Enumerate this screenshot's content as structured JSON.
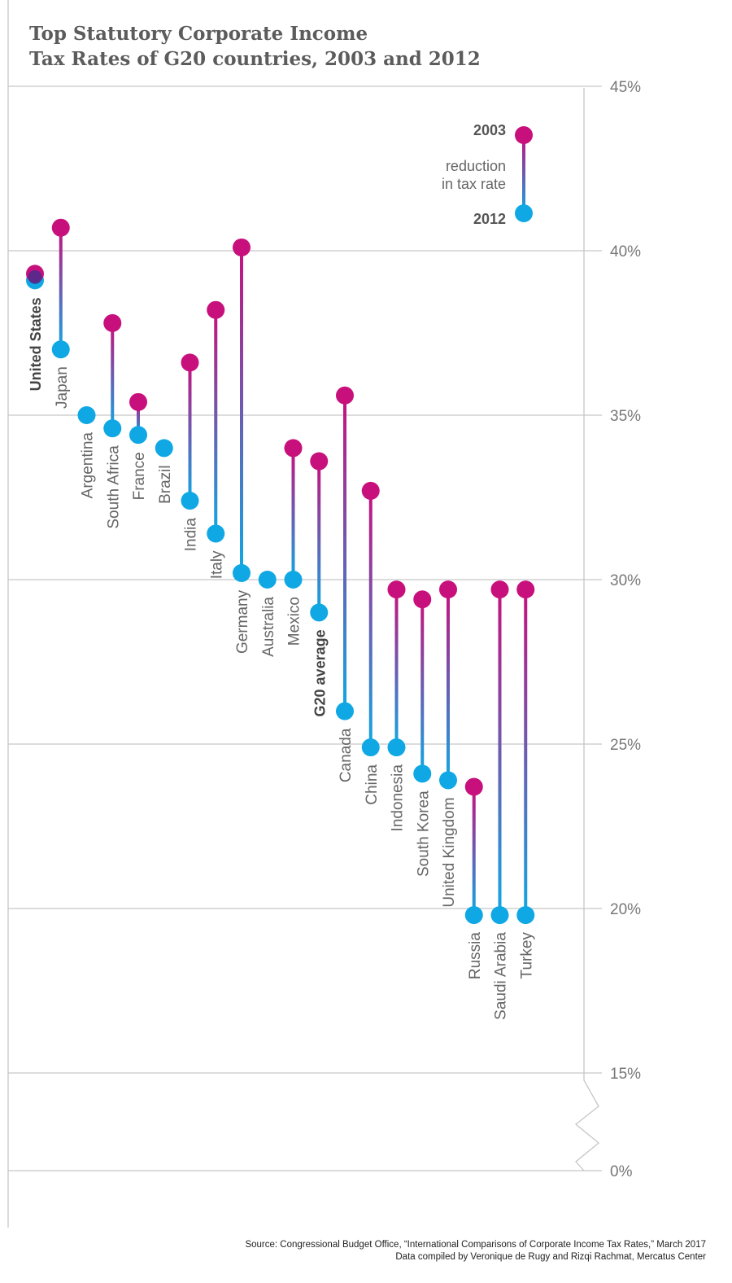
{
  "title_lines": [
    "Top Statutory Corporate Income",
    "Tax Rates of G20 countries, 2003 and 2012"
  ],
  "source_lines": [
    "Source: Congressional Budget Office, “International Comparisons of Corporate Income Tax Rates,” March 2017",
    "Data compiled by Veronique de Rugy and Rizqi Rachmat, Mercatus Center"
  ],
  "legend": {
    "label_2003": "2003",
    "label_middle": [
      "reduction",
      "in tax rate"
    ],
    "label_2012": "2012"
  },
  "colors": {
    "value_2003": "#c8107d",
    "value_2012": "#0fa8e4",
    "same_value": "#4b2d8c",
    "gridline": "#c6c6c6",
    "axis_text": "#777777"
  },
  "chart_data": {
    "type": "dumbbell",
    "axis_break": "between 0% and 15%",
    "ylim": [
      15,
      45
    ],
    "ytick_labels": [
      "0%",
      "15%",
      "20%",
      "25%",
      "30%",
      "35%",
      "40%",
      "45%"
    ],
    "ytick_values": [
      0,
      15,
      20,
      25,
      30,
      35,
      40,
      45
    ],
    "series_names": [
      "2003",
      "2012"
    ],
    "categories": [
      "United States",
      "Japan",
      "Argentina",
      "South Africa",
      "France",
      "Brazil",
      "India",
      "Italy",
      "Germany",
      "Australia",
      "Mexico",
      "G20 average",
      "Canada",
      "China",
      "Indonesia",
      "South Korea",
      "United Kingdom",
      "Russia",
      "Saudi Arabia",
      "Turkey"
    ],
    "bold_categories": [
      "United States",
      "G20 average"
    ],
    "values_2003": [
      39.3,
      40.7,
      35.0,
      37.8,
      35.4,
      34.0,
      36.6,
      38.2,
      40.1,
      30.0,
      34.0,
      33.6,
      35.6,
      32.7,
      29.7,
      29.4,
      29.7,
      23.7,
      29.7,
      29.7
    ],
    "values_2012": [
      39.1,
      37.0,
      35.0,
      34.6,
      34.4,
      34.0,
      32.4,
      31.4,
      30.2,
      30.0,
      30.0,
      29.0,
      26.0,
      24.9,
      24.9,
      24.1,
      23.9,
      19.8,
      19.8,
      19.8
    ]
  }
}
